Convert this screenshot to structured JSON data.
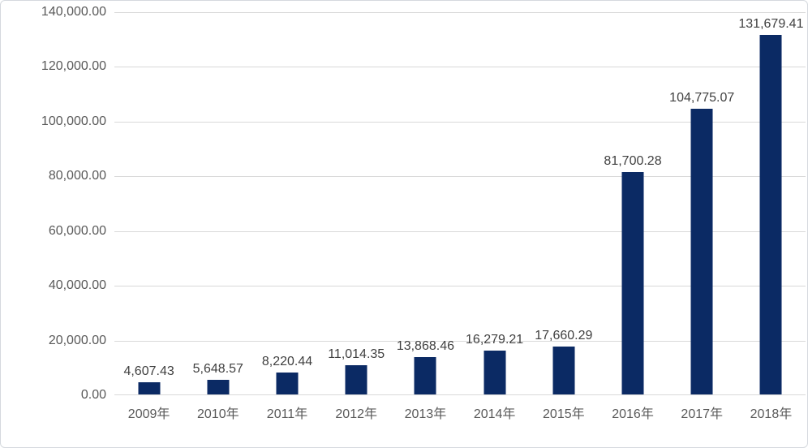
{
  "chart_data": {
    "type": "bar",
    "categories": [
      "2009年",
      "2010年",
      "2011年",
      "2012年",
      "2013年",
      "2014年",
      "2015年",
      "2016年",
      "2017年",
      "2018年"
    ],
    "values": [
      4607.43,
      5648.57,
      8220.44,
      11014.35,
      13868.46,
      16279.21,
      17660.29,
      81700.28,
      104775.07,
      131679.41
    ],
    "data_labels": [
      "4,607.43",
      "5,648.57",
      "8,220.44",
      "11,014.35",
      "13,868.46",
      "16,279.21",
      "17,660.29",
      "81,700.28",
      "104,775.07",
      "131,679.41"
    ],
    "y_axis": {
      "min": 0,
      "max": 140000,
      "step": 20000,
      "tick_labels": [
        "140,000.00",
        "120,000.00",
        "100,000.00",
        "80,000.00",
        "60,000.00",
        "40,000.00",
        "20,000.00",
        "0.00"
      ]
    },
    "grid": true,
    "legend": "none",
    "title": "",
    "xlabel": "",
    "ylabel": "",
    "colors": {
      "bar": "#0b2a64",
      "axis_text": "#595959",
      "data_label_text": "#404040",
      "gridline": "#d9d9d9",
      "axis_line": "#d9d9d9",
      "background": "#ffffff",
      "border": "#d5d9de"
    }
  }
}
